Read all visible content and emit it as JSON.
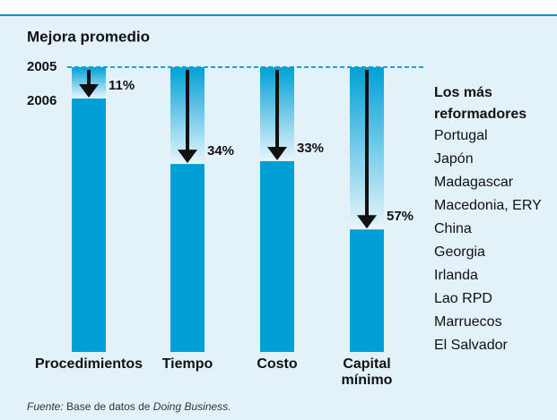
{
  "chart_data": {
    "type": "bar",
    "title": "Mejora promedio",
    "period_labels": [
      "2005",
      "2006"
    ],
    "categories": [
      "Procedimientos",
      "Tiempo",
      "Costo",
      "Capital mínimo"
    ],
    "values": [
      11,
      34,
      33,
      57
    ],
    "value_labels": [
      "11%",
      "34%",
      "33%",
      "57%"
    ],
    "color": "#00a0d6",
    "ylim": [
      0,
      100
    ],
    "side_title": "Los más reformadores",
    "side_list": [
      "Portugal",
      "Japón",
      "Madagascar",
      "Macedonia, ERY",
      "China",
      "Georgia",
      "Irlanda",
      "Lao RPD",
      "Marruecos",
      "El Salvador"
    ],
    "source": {
      "label": "Fuente:",
      "text1": "Base de datos de",
      "text2": "Doing Business."
    }
  }
}
